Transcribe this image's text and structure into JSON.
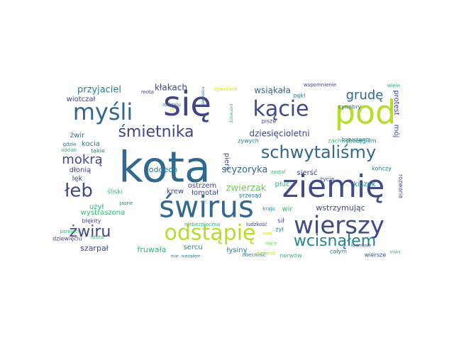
{
  "palette": {
    "dark_purple": "#3e4a89",
    "indigo": "#414487",
    "blue": "#31688e",
    "teal": "#26828e",
    "green_teal": "#1f9e89",
    "green": "#35b779",
    "lime": "#6ece58",
    "yellow_green": "#b5de2b",
    "yellow": "#dde318"
  },
  "words": [
    {
      "text": "kota"
    },
    {
      "text": "się"
    },
    {
      "text": "ziemię"
    },
    {
      "text": "świrus"
    },
    {
      "text": "pod"
    },
    {
      "text": "wierszy"
    },
    {
      "text": "odstąpię"
    },
    {
      "text": "myśli"
    },
    {
      "text": "kącie"
    },
    {
      "text": "schwytaliśmy"
    },
    {
      "text": "śmietnika"
    },
    {
      "text": "łeb"
    },
    {
      "text": "wcisnąłem"
    },
    {
      "text": "mokrą"
    },
    {
      "text": "żwiru"
    },
    {
      "text": "grudę"
    },
    {
      "text": "przyjaciel"
    },
    {
      "text": "kłakach"
    },
    {
      "text": "wsiąkała"
    },
    {
      "text": "żywotach"
    },
    {
      "text": "dziesięcioletni"
    },
    {
      "text": "scyzoryka"
    },
    {
      "text": "oddech"
    },
    {
      "text": "ostrzem"
    },
    {
      "text": "łomotał"
    },
    {
      "text": "zwierzak"
    },
    {
      "text": "krew"
    },
    {
      "text": "wstrzymując"
    },
    {
      "text": "wystraszona"
    },
    {
      "text": "szarpał"
    },
    {
      "text": "fruwała"
    },
    {
      "text": "sercu"
    },
    {
      "text": "łysiny"
    },
    {
      "text": "nerwów"
    },
    {
      "text": "wiotczał"
    },
    {
      "text": "żwir"
    },
    {
      "text": "kocia"
    },
    {
      "text": "dłonią"
    },
    {
      "text": "lęk"
    },
    {
      "text": "użył"
    },
    {
      "text": "śliski"
    },
    {
      "text": "błękity"
    },
    {
      "text": "dziewięciu"
    },
    {
      "text": "mój"
    },
    {
      "text": "protest"
    },
    {
      "text": "zachwycony"
    },
    {
      "text": "cynobry"
    },
    {
      "text": "chirurgiem"
    },
    {
      "text": "kiszek"
    },
    {
      "text": "rozwaria"
    },
    {
      "text": "sierść"
    },
    {
      "text": "płuc"
    },
    {
      "text": "żywych"
    },
    {
      "text": "pierś"
    },
    {
      "text": "przesąd"
    },
    {
      "text": "wir"
    },
    {
      "text": "sił"
    },
    {
      "text": "kraju"
    },
    {
      "text": "żył"
    },
    {
      "text": "całym"
    },
    {
      "text": "wiersze"
    },
    {
      "text": "pękł"
    },
    {
      "text": "pisze"
    },
    {
      "text": "bogactwem"
    },
    {
      "text": "wspomnienie"
    },
    {
      "text": "wiele"
    },
    {
      "text": "mota"
    },
    {
      "text": "rodzaju"
    },
    {
      "text": "takie"
    },
    {
      "text": "gdzie"
    },
    {
      "text": "oddan"
    },
    {
      "text": "jasne"
    },
    {
      "text": "pamięci"
    },
    {
      "text": "istota"
    },
    {
      "text": "niebezpieczną"
    },
    {
      "text": "ludzkość"
    },
    {
      "text": "obecność"
    },
    {
      "text": "kosmosie"
    },
    {
      "text": "zostal"
    },
    {
      "text": "życia"
    },
    {
      "text": "kończy"
    },
    {
      "text": "nic"
    },
    {
      "text": "śmierci"
    },
    {
      "text": "pierwszy"
    },
    {
      "text": "nienowe"
    },
    {
      "text": "jej"
    },
    {
      "text": "sowa"
    },
    {
      "text": "mie"
    },
    {
      "text": "nieżałem"
    },
    {
      "text": "sam"
    },
    {
      "text": "męce"
    }
  ]
}
